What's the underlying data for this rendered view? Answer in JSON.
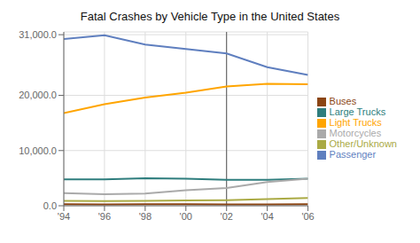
{
  "chart_data": {
    "type": "line",
    "title": "Fatal Crashes by Vehicle Type in the United States",
    "x": [
      1994,
      1996,
      1998,
      2000,
      2002,
      2004,
      2006
    ],
    "series": [
      {
        "name": "Passenger",
        "color": "#5F7FBF",
        "values": [
          30200,
          30900,
          29200,
          28400,
          27600,
          25100,
          23700
        ]
      },
      {
        "name": "Light Trucks",
        "color": "#FFA500",
        "values": [
          16800,
          18400,
          19600,
          20500,
          21600,
          22100,
          22000
        ]
      },
      {
        "name": "Large Trucks",
        "color": "#2E7D7D",
        "values": [
          4800,
          4800,
          5000,
          4900,
          4700,
          4700,
          4900
        ]
      },
      {
        "name": "Motorcycles",
        "color": "#AAAAAA",
        "values": [
          2300,
          2100,
          2200,
          2800,
          3200,
          4300,
          4900
        ]
      },
      {
        "name": "Buses",
        "color": "#8B4513",
        "values": [
          280,
          250,
          270,
          290,
          240,
          260,
          290
        ]
      },
      {
        "name": "Other/Unknown",
        "color": "#AAAA44",
        "values": [
          900,
          850,
          900,
          950,
          1000,
          1200,
          1400
        ]
      }
    ],
    "xlim": [
      1994,
      2006
    ],
    "xticks": [
      {
        "value": 1994,
        "label": "'94"
      },
      {
        "value": 1996,
        "label": "'96"
      },
      {
        "value": 1998,
        "label": "'98"
      },
      {
        "value": 2000,
        "label": "'00"
      },
      {
        "value": 2002,
        "label": "'02"
      },
      {
        "value": 2004,
        "label": "'04"
      },
      {
        "value": 2006,
        "label": "'06"
      }
    ],
    "ylim": [
      0,
      31500
    ],
    "yticks": [
      {
        "value": 0,
        "label": "0.0"
      },
      {
        "value": 10000,
        "label": "10,000.0"
      },
      {
        "value": 20000,
        "label": "20,000.0"
      },
      {
        "value": 31000,
        "label": "31,000.0"
      }
    ],
    "vline": {
      "x": 2002,
      "color": "#555555"
    },
    "grid": true,
    "legend": "right"
  }
}
